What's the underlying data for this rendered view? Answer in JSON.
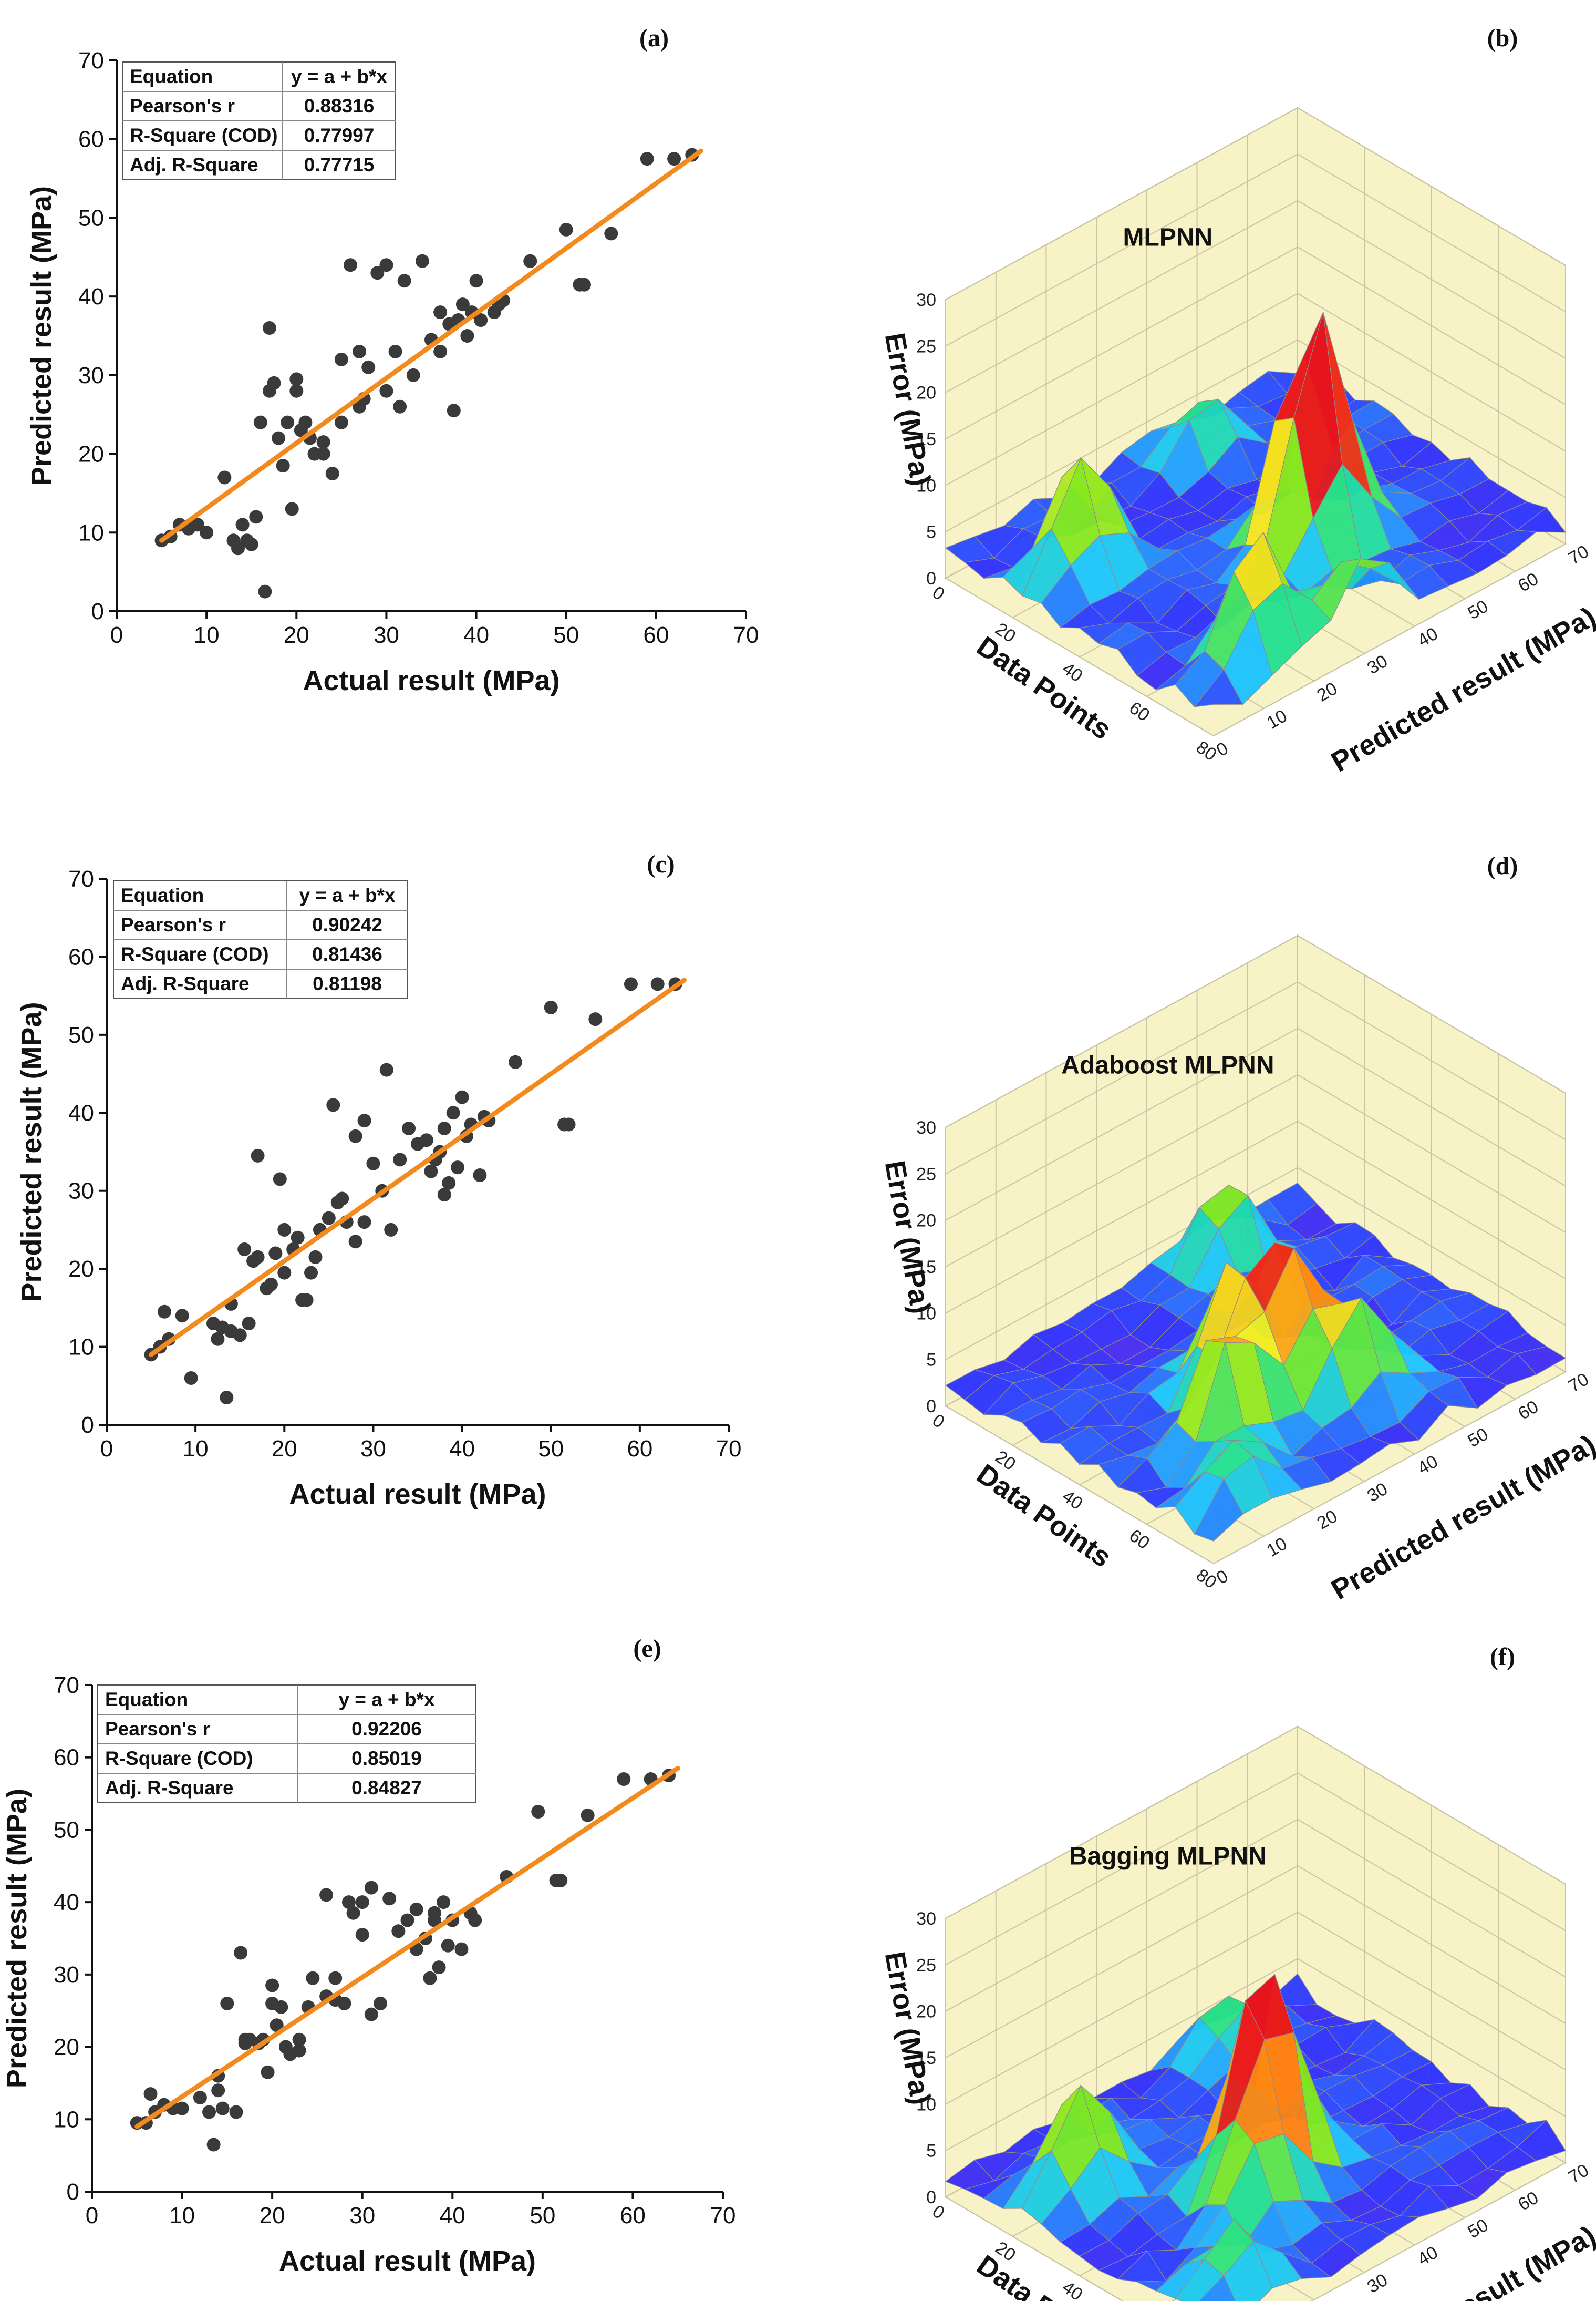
{
  "scatter_common": {
    "xlabel": "Actual result (MPa)",
    "ylabel": "Predicted result (MPa)",
    "xlim": [
      0,
      70
    ],
    "ylim": [
      0,
      70
    ],
    "ticks": [
      0,
      10,
      20,
      30,
      40,
      50,
      60,
      70
    ],
    "colors": {
      "points": "#3a3a3a",
      "fit": "#f28a1e"
    }
  },
  "surface_common": {
    "xlabel": "Data Points",
    "ylabel": "Predicted result (MPa)",
    "zlabel": "Error (MPa)",
    "x_ticks": [
      0,
      20,
      40,
      60,
      80
    ],
    "y_ticks": [
      0,
      10,
      20,
      30,
      40,
      50,
      60,
      70
    ],
    "z_ticks": [
      0,
      5,
      10,
      15,
      20,
      25,
      30
    ],
    "colors": {
      "wall": "#f8f3c6",
      "grid": "#c9c4a4"
    }
  },
  "chart_data": [
    {
      "panel": "(a)",
      "type": "scatter",
      "xlabel": "Actual result (MPa)",
      "ylabel": "Predicted result (MPa)",
      "xlim": [
        0,
        70
      ],
      "ylim": [
        0,
        70
      ],
      "fit": {
        "equation": "y = a + b*x",
        "x": [
          5,
          65
        ],
        "y": [
          9,
          58.5
        ]
      },
      "stats": [
        {
          "label": "Equation",
          "value": "y = a + b*x"
        },
        {
          "label": "Pearson's r",
          "value": "0.88316"
        },
        {
          "label": "R-Square (COD)",
          "value": "0.77997"
        },
        {
          "label": "Adj. R-Square",
          "value": "0.77715"
        }
      ],
      "points": [
        [
          5,
          9
        ],
        [
          6,
          9.5
        ],
        [
          7,
          11
        ],
        [
          8,
          10.5
        ],
        [
          9,
          11
        ],
        [
          10,
          10
        ],
        [
          12,
          17
        ],
        [
          13,
          9
        ],
        [
          13.5,
          8
        ],
        [
          14,
          11
        ],
        [
          14.5,
          9
        ],
        [
          15,
          8.5
        ],
        [
          15.5,
          12
        ],
        [
          16,
          24
        ],
        [
          16.5,
          2.5
        ],
        [
          17,
          28
        ],
        [
          17,
          36
        ],
        [
          17.5,
          29
        ],
        [
          18,
          22
        ],
        [
          18.5,
          18.5
        ],
        [
          19,
          24
        ],
        [
          19.5,
          13
        ],
        [
          20,
          28
        ],
        [
          20,
          29.5
        ],
        [
          20.5,
          23
        ],
        [
          21,
          24
        ],
        [
          21.5,
          22
        ],
        [
          22,
          20
        ],
        [
          23,
          20
        ],
        [
          23,
          21.5
        ],
        [
          24,
          17.5
        ],
        [
          25,
          32
        ],
        [
          25,
          24
        ],
        [
          26,
          44
        ],
        [
          27,
          33
        ],
        [
          27,
          26
        ],
        [
          27.5,
          27
        ],
        [
          28,
          31
        ],
        [
          29,
          43
        ],
        [
          30,
          28
        ],
        [
          30,
          44
        ],
        [
          31,
          33
        ],
        [
          31.5,
          26
        ],
        [
          32,
          42
        ],
        [
          33,
          30
        ],
        [
          34,
          44.5
        ],
        [
          35,
          34.5
        ],
        [
          36,
          38
        ],
        [
          36,
          33
        ],
        [
          37,
          36.5
        ],
        [
          37.5,
          25.5
        ],
        [
          38,
          37
        ],
        [
          38.5,
          39
        ],
        [
          39,
          35
        ],
        [
          39.5,
          38
        ],
        [
          40,
          42
        ],
        [
          40.5,
          37
        ],
        [
          42,
          38
        ],
        [
          42.5,
          39
        ],
        [
          43,
          39.5
        ],
        [
          46,
          44.5
        ],
        [
          50,
          48.5
        ],
        [
          51.5,
          41.5
        ],
        [
          52,
          41.5
        ],
        [
          55,
          48
        ],
        [
          59,
          57.5
        ],
        [
          62,
          57.5
        ],
        [
          64,
          58
        ]
      ]
    },
    {
      "panel": "(b)",
      "type": "surface",
      "title": "MLPNN",
      "xlabel": "Data Points",
      "ylabel": "Predicted result (MPa)",
      "zlabel": "Error (MPa)",
      "x_range": [
        0,
        80
      ],
      "y_range": [
        0,
        70
      ],
      "z_range": [
        0,
        30
      ],
      "peaks": [
        {
          "x": 10,
          "y": 45,
          "z": 6.5
        },
        {
          "x": 22,
          "y": 12,
          "z": 12.5
        },
        {
          "x": 48,
          "y": 38,
          "z": 16.5
        },
        {
          "x": 52,
          "y": 42,
          "z": 14
        },
        {
          "x": 70,
          "y": 15,
          "z": 13
        },
        {
          "x": 78,
          "y": 30,
          "z": 10
        }
      ]
    },
    {
      "panel": "(c)",
      "type": "scatter",
      "xlabel": "Actual result (MPa)",
      "ylabel": "Predicted result (MPa)",
      "xlim": [
        0,
        70
      ],
      "ylim": [
        0,
        70
      ],
      "fit": {
        "equation": "y = a + b*x",
        "x": [
          5,
          65
        ],
        "y": [
          9,
          57
        ]
      },
      "stats": [
        {
          "label": "Equation",
          "value": "y = a + b*x"
        },
        {
          "label": "Pearson's r",
          "value": "0.90242"
        },
        {
          "label": "R-Square (COD)",
          "value": "0.81436"
        },
        {
          "label": "Adj. R-Square",
          "value": "0.81198"
        }
      ],
      "points": [
        [
          5,
          9
        ],
        [
          6,
          10
        ],
        [
          6.5,
          14.5
        ],
        [
          7,
          11
        ],
        [
          8.5,
          14
        ],
        [
          9.5,
          6
        ],
        [
          12,
          13
        ],
        [
          12.5,
          11
        ],
        [
          13,
          12.5
        ],
        [
          13.5,
          3.5
        ],
        [
          14,
          15.5
        ],
        [
          14,
          12
        ],
        [
          15,
          11.5
        ],
        [
          15.5,
          22.5
        ],
        [
          16,
          13
        ],
        [
          16.5,
          21
        ],
        [
          17,
          34.5
        ],
        [
          17,
          21.5
        ],
        [
          18,
          17.5
        ],
        [
          18.5,
          18
        ],
        [
          19,
          22
        ],
        [
          19.5,
          31.5
        ],
        [
          20,
          25
        ],
        [
          20,
          19.5
        ],
        [
          21,
          22.5
        ],
        [
          21.5,
          24
        ],
        [
          22,
          16
        ],
        [
          22.5,
          16
        ],
        [
          23,
          19.5
        ],
        [
          23.5,
          21.5
        ],
        [
          24,
          25
        ],
        [
          25,
          26.5
        ],
        [
          25.5,
          41
        ],
        [
          26,
          28.5
        ],
        [
          26.5,
          29
        ],
        [
          27,
          26
        ],
        [
          28,
          37
        ],
        [
          28,
          23.5
        ],
        [
          29,
          39
        ],
        [
          29,
          26
        ],
        [
          30,
          33.5
        ],
        [
          31,
          30
        ],
        [
          31.5,
          45.5
        ],
        [
          32,
          25
        ],
        [
          33,
          34
        ],
        [
          34,
          38
        ],
        [
          35,
          36
        ],
        [
          36,
          36.5
        ],
        [
          36.5,
          32.5
        ],
        [
          37,
          34
        ],
        [
          37.5,
          35
        ],
        [
          38,
          29.5
        ],
        [
          38,
          38
        ],
        [
          38.5,
          31
        ],
        [
          39,
          40
        ],
        [
          39.5,
          33
        ],
        [
          40,
          42
        ],
        [
          40.5,
          37
        ],
        [
          41,
          38.5
        ],
        [
          42,
          32
        ],
        [
          42.5,
          39.5
        ],
        [
          43,
          39
        ],
        [
          46,
          46.5
        ],
        [
          50,
          53.5
        ],
        [
          51.5,
          38.5
        ],
        [
          52,
          38.5
        ],
        [
          55,
          52
        ],
        [
          59,
          56.5
        ],
        [
          62,
          56.5
        ],
        [
          64,
          56.5
        ]
      ]
    },
    {
      "panel": "(d)",
      "type": "surface",
      "title": "Adaboost MLPNN",
      "xlabel": "Data Points",
      "ylabel": "Predicted result (MPa)",
      "zlabel": "Error (MPa)",
      "x_range": [
        0,
        80
      ],
      "y_range": [
        0,
        70
      ],
      "z_range": [
        0,
        30
      ],
      "peaks": [
        {
          "x": 8,
          "y": 50,
          "z": 9
        },
        {
          "x": 40,
          "y": 30,
          "z": 12
        },
        {
          "x": 50,
          "y": 35,
          "z": 15
        },
        {
          "x": 55,
          "y": 20,
          "z": 14
        },
        {
          "x": 62,
          "y": 40,
          "z": 11
        },
        {
          "x": 70,
          "y": 10,
          "z": 6
        }
      ]
    },
    {
      "panel": "(e)",
      "type": "scatter",
      "xlabel": "Actual result (MPa)",
      "ylabel": "Predicted result (MPa)",
      "xlim": [
        0,
        70
      ],
      "ylim": [
        0,
        70
      ],
      "fit": {
        "equation": "y = a + b*x",
        "x": [
          5,
          65
        ],
        "y": [
          9,
          58.5
        ]
      },
      "stats": [
        {
          "label": "Equation",
          "value": "y = a + b*x"
        },
        {
          "label": "Pearson's r",
          "value": "0.92206"
        },
        {
          "label": "R-Square (COD)",
          "value": "0.85019"
        },
        {
          "label": "Adj. R-Square",
          "value": "0.84827"
        }
      ],
      "points": [
        [
          5,
          9.5
        ],
        [
          6,
          9.5
        ],
        [
          6.5,
          13.5
        ],
        [
          7,
          11
        ],
        [
          8,
          12
        ],
        [
          9,
          11.5
        ],
        [
          10,
          11.5
        ],
        [
          12,
          13
        ],
        [
          13,
          11
        ],
        [
          13.5,
          6.5
        ],
        [
          14,
          14
        ],
        [
          14,
          16
        ],
        [
          14.5,
          11.5
        ],
        [
          15,
          26
        ],
        [
          16,
          11
        ],
        [
          16.5,
          33
        ],
        [
          17,
          20.5
        ],
        [
          17,
          21
        ],
        [
          17.5,
          21
        ],
        [
          18.5,
          20.5
        ],
        [
          19,
          21
        ],
        [
          19.5,
          16.5
        ],
        [
          20,
          26
        ],
        [
          20,
          28.5
        ],
        [
          20.5,
          23
        ],
        [
          21,
          25.5
        ],
        [
          21.5,
          20
        ],
        [
          22,
          19
        ],
        [
          23,
          19.5
        ],
        [
          23,
          21
        ],
        [
          24,
          25.5
        ],
        [
          24.5,
          29.5
        ],
        [
          26,
          41
        ],
        [
          26,
          27
        ],
        [
          27,
          26.5
        ],
        [
          27,
          29.5
        ],
        [
          28,
          26
        ],
        [
          28.5,
          40
        ],
        [
          29,
          38.5
        ],
        [
          30,
          35.5
        ],
        [
          30,
          40
        ],
        [
          31,
          24.5
        ],
        [
          31,
          42
        ],
        [
          32,
          26
        ],
        [
          33,
          40.5
        ],
        [
          34,
          36
        ],
        [
          35,
          37.5
        ],
        [
          36,
          39
        ],
        [
          36,
          33.5
        ],
        [
          37,
          35
        ],
        [
          37.5,
          29.5
        ],
        [
          38,
          37.5
        ],
        [
          38,
          38.5
        ],
        [
          38.5,
          31
        ],
        [
          39,
          40
        ],
        [
          39.5,
          34
        ],
        [
          40,
          37.5
        ],
        [
          41,
          33.5
        ],
        [
          42,
          38.5
        ],
        [
          42.5,
          37.5
        ],
        [
          46,
          43.5
        ],
        [
          49.5,
          52.5
        ],
        [
          51.5,
          43
        ],
        [
          52,
          43
        ],
        [
          55,
          52
        ],
        [
          59,
          57
        ],
        [
          62,
          57
        ],
        [
          64,
          57.5
        ]
      ]
    },
    {
      "panel": "(f)",
      "type": "surface",
      "title": "Bagging MLPNN",
      "xlabel": "Data Points",
      "ylabel": "Predicted result (MPa)",
      "zlabel": "Error (MPa)",
      "x_range": [
        0,
        80
      ],
      "y_range": [
        0,
        70
      ],
      "z_range": [
        0,
        30
      ],
      "peaks": [
        {
          "x": 8,
          "y": 50,
          "z": 7
        },
        {
          "x": 22,
          "y": 12,
          "z": 11.5
        },
        {
          "x": 45,
          "y": 30,
          "z": 14
        },
        {
          "x": 48,
          "y": 35,
          "z": 13.5
        },
        {
          "x": 55,
          "y": 25,
          "z": 10
        },
        {
          "x": 70,
          "y": 10,
          "z": 7
        }
      ]
    }
  ]
}
